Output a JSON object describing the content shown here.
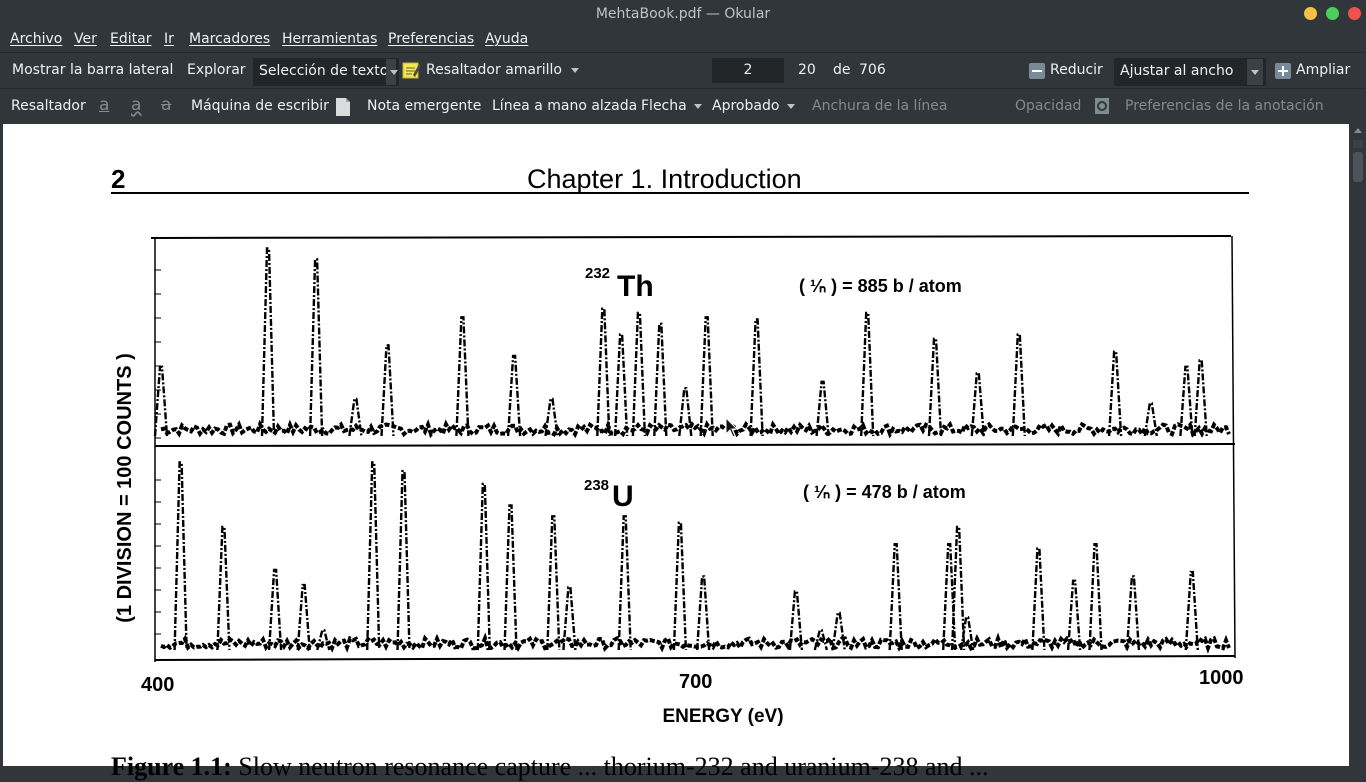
{
  "window": {
    "title": "MehtaBook.pdf — Okular"
  },
  "menu": [
    "Archivo",
    "Ver",
    "Editar",
    "Ir",
    "Marcadores",
    "Herramientas",
    "Preferencias",
    "Ayuda"
  ],
  "toolbar": {
    "sidebar_label": "Mostrar la barra lateral",
    "browse_label": "Explorar",
    "selection_mode": "Selección de texto",
    "highlighter_label": "Resaltador amarillo",
    "page_current": "2",
    "page_label_number": "20",
    "page_of": "de",
    "page_total": "706",
    "zoom_out_label": "Reducir",
    "zoom_mode": "Ajustar al ancho",
    "zoom_in_label": "Ampliar"
  },
  "annotation_bar": {
    "highlighter": "Resaltador",
    "typewriter": "Máquina de escribir",
    "popup_note": "Nota emergente",
    "freehand": "Línea a mano alzada",
    "arrow": "Flecha",
    "stamp": "Aprobado",
    "line_width": "Anchura de la línea",
    "opacity": "Opacidad",
    "preferences": "Preferencias de la anotación",
    "icons": [
      "underline-icon",
      "squiggly-icon",
      "strikeout-icon",
      "typewriter-icon",
      "annotation-settings-icon"
    ]
  },
  "document": {
    "page_number": "2",
    "chapter_title": "Chapter 1.  Introduction",
    "caption_prefix": "Figure 1.1:",
    "caption_text": "Slow neutron resonance capture ...  thorium-232 and uranium-238 and ..."
  },
  "chart_data": {
    "type": "line",
    "xlabel": "ENERGY (eV)",
    "ylabel": "(1 DIVISION = 100 COUNTS )",
    "x_ticks": [
      "400",
      "700",
      "1000"
    ],
    "xlim": [
      400,
      1000
    ],
    "series": [
      {
        "name": "232Th",
        "mass": "232",
        "element": "Th",
        "annotation": "( ¹⁄ₙ ) = 885 b / atom",
        "baseline": 0.5,
        "peaks": [
          {
            "x": 400,
            "h": 3.5
          },
          {
            "x": 460,
            "h": 9.0
          },
          {
            "x": 487,
            "h": 8.5
          },
          {
            "x": 509,
            "h": 2.0
          },
          {
            "x": 527,
            "h": 4.5
          },
          {
            "x": 569,
            "h": 5.8
          },
          {
            "x": 598,
            "h": 4.0
          },
          {
            "x": 619,
            "h": 2.0
          },
          {
            "x": 648,
            "h": 6.2
          },
          {
            "x": 658,
            "h": 5.0
          },
          {
            "x": 668,
            "h": 6.0
          },
          {
            "x": 680,
            "h": 5.5
          },
          {
            "x": 694,
            "h": 2.5
          },
          {
            "x": 706,
            "h": 5.8
          },
          {
            "x": 734,
            "h": 5.7
          },
          {
            "x": 771,
            "h": 2.8
          },
          {
            "x": 796,
            "h": 6.0
          },
          {
            "x": 834,
            "h": 4.8
          },
          {
            "x": 858,
            "h": 3.2
          },
          {
            "x": 881,
            "h": 5.0
          },
          {
            "x": 935,
            "h": 4.2
          },
          {
            "x": 955,
            "h": 1.8
          },
          {
            "x": 975,
            "h": 3.5
          },
          {
            "x": 983,
            "h": 3.8
          }
        ]
      },
      {
        "name": "238U",
        "mass": "238",
        "element": "U",
        "annotation": "( ¹⁄ₙ ) = 478 b / atom",
        "baseline": 0.5,
        "peaks": [
          {
            "x": 411,
            "h": 9.0
          },
          {
            "x": 435,
            "h": 6.0
          },
          {
            "x": 464,
            "h": 4.0
          },
          {
            "x": 480,
            "h": 3.3
          },
          {
            "x": 491,
            "h": 1.2
          },
          {
            "x": 519,
            "h": 9.0
          },
          {
            "x": 536,
            "h": 8.6
          },
          {
            "x": 581,
            "h": 8.0
          },
          {
            "x": 596,
            "h": 7.0
          },
          {
            "x": 620,
            "h": 6.5
          },
          {
            "x": 629,
            "h": 3.2
          },
          {
            "x": 660,
            "h": 6.5
          },
          {
            "x": 691,
            "h": 6.2
          },
          {
            "x": 704,
            "h": 3.7
          },
          {
            "x": 756,
            "h": 3.0
          },
          {
            "x": 770,
            "h": 1.2
          },
          {
            "x": 780,
            "h": 2.0
          },
          {
            "x": 812,
            "h": 5.2
          },
          {
            "x": 842,
            "h": 5.2
          },
          {
            "x": 847,
            "h": 6.0
          },
          {
            "x": 852,
            "h": 1.8
          },
          {
            "x": 892,
            "h": 5.0
          },
          {
            "x": 912,
            "h": 3.5
          },
          {
            "x": 924,
            "h": 5.2
          },
          {
            "x": 945,
            "h": 3.7
          },
          {
            "x": 978,
            "h": 3.9
          }
        ]
      }
    ]
  }
}
